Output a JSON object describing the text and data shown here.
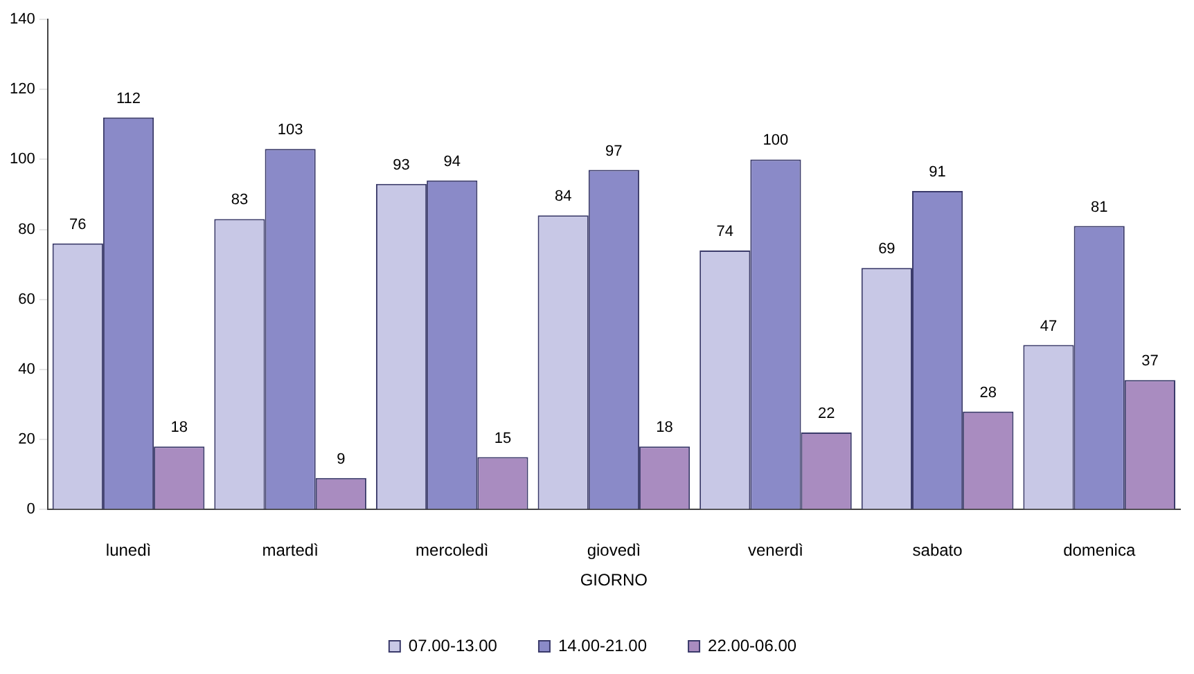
{
  "chart_data": {
    "type": "bar",
    "xlabel": "GIORNO",
    "categories": [
      "lunedì",
      "martedì",
      "mercoledì",
      "giovedì",
      "venerdì",
      "sabato",
      "domenica"
    ],
    "series": [
      {
        "name": "07.00-13.00",
        "color": "#c8c8e6",
        "values": [
          76,
          83,
          93,
          84,
          74,
          69,
          47
        ]
      },
      {
        "name": "14.00-21.00",
        "color": "#8a8ac8",
        "values": [
          112,
          103,
          94,
          97,
          100,
          91,
          81
        ]
      },
      {
        "name": "22.00-06.00",
        "color": "#a98cc0",
        "values": [
          18,
          9,
          15,
          18,
          22,
          28,
          37
        ]
      }
    ],
    "ylim": [
      0,
      140
    ],
    "yticks": [
      0,
      20,
      40,
      60,
      80,
      100,
      120,
      140
    ],
    "grid": false,
    "legend": "bottom",
    "data_labels": true
  }
}
